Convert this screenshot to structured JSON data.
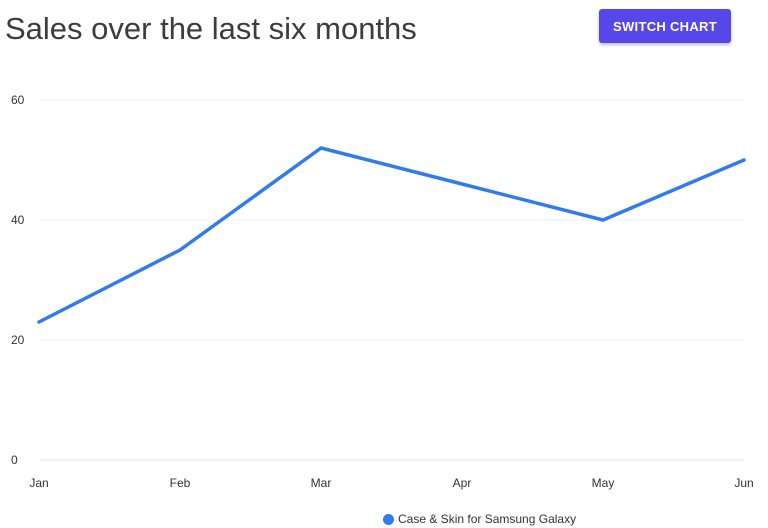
{
  "header": {
    "title": "Sales over the last six months",
    "switch_label": "SWITCH CHART"
  },
  "chart_data": {
    "type": "line",
    "categories": [
      "Jan",
      "Feb",
      "Mar",
      "Apr",
      "May",
      "Jun"
    ],
    "series": [
      {
        "name": "Case & Skin for Samsung Galaxy",
        "values": [
          23,
          35,
          52,
          46,
          40,
          50
        ],
        "color": "#2f7bef"
      }
    ],
    "yticks": [
      0,
      20,
      40,
      60
    ],
    "ylim": [
      0,
      60
    ],
    "grid": true,
    "legend_position": "bottom"
  }
}
